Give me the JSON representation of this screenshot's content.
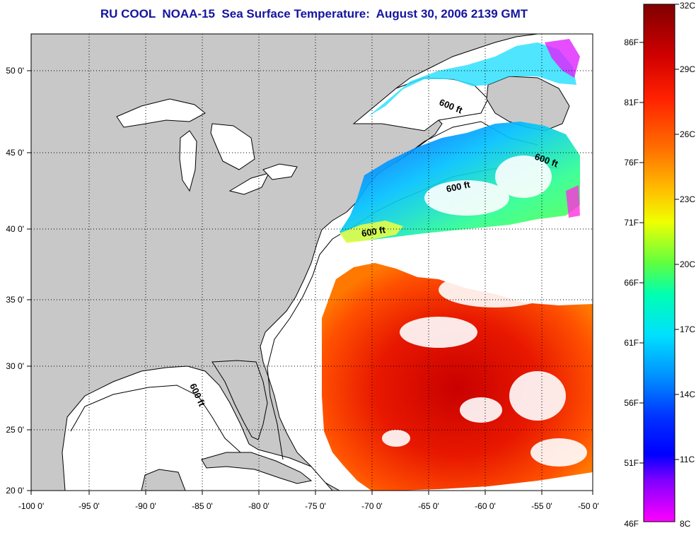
{
  "title": "RU COOL  NOAA-15  Sea Surface Temperature:  August 30, 2006 2139 GMT",
  "map": {
    "x_axis_labels": [
      "-100 0'",
      "-95 0'",
      "-90 0'",
      "-85 0'",
      "-80 0'",
      "-75 0'",
      "-70 0'",
      "-65 0'",
      "-60 0'",
      "-55 0'",
      "-50 0'"
    ],
    "y_axis_labels": [
      "50 0'",
      "45 0'",
      "40 0'",
      "35 0'",
      "30 0'",
      "25 0'",
      "20 0'"
    ],
    "contour_labels": [
      "600 ft",
      "600 ft",
      "600 ft",
      "600 ft",
      "600 ft"
    ],
    "colors": {
      "land": "#c8c8c8",
      "ocean": "#ffffff",
      "coast": "#000000"
    }
  },
  "colorbar": {
    "fahrenheit_labels": [
      "86F",
      "81F",
      "76F",
      "71F",
      "66F",
      "61F",
      "56F",
      "51F",
      "46F"
    ],
    "celsius_labels": [
      "32C",
      "29C",
      "26C",
      "23C",
      "20C",
      "17C",
      "14C",
      "11C",
      "8C"
    ],
    "gradient": [
      "#800000",
      "#e00000",
      "#ff3000",
      "#ff8000",
      "#ffd000",
      "#e8ff00",
      "#60ff40",
      "#00ffa0",
      "#00e8ff",
      "#0080ff",
      "#0020ff",
      "#0000ff",
      "#8000ff",
      "#ff00ff"
    ]
  }
}
